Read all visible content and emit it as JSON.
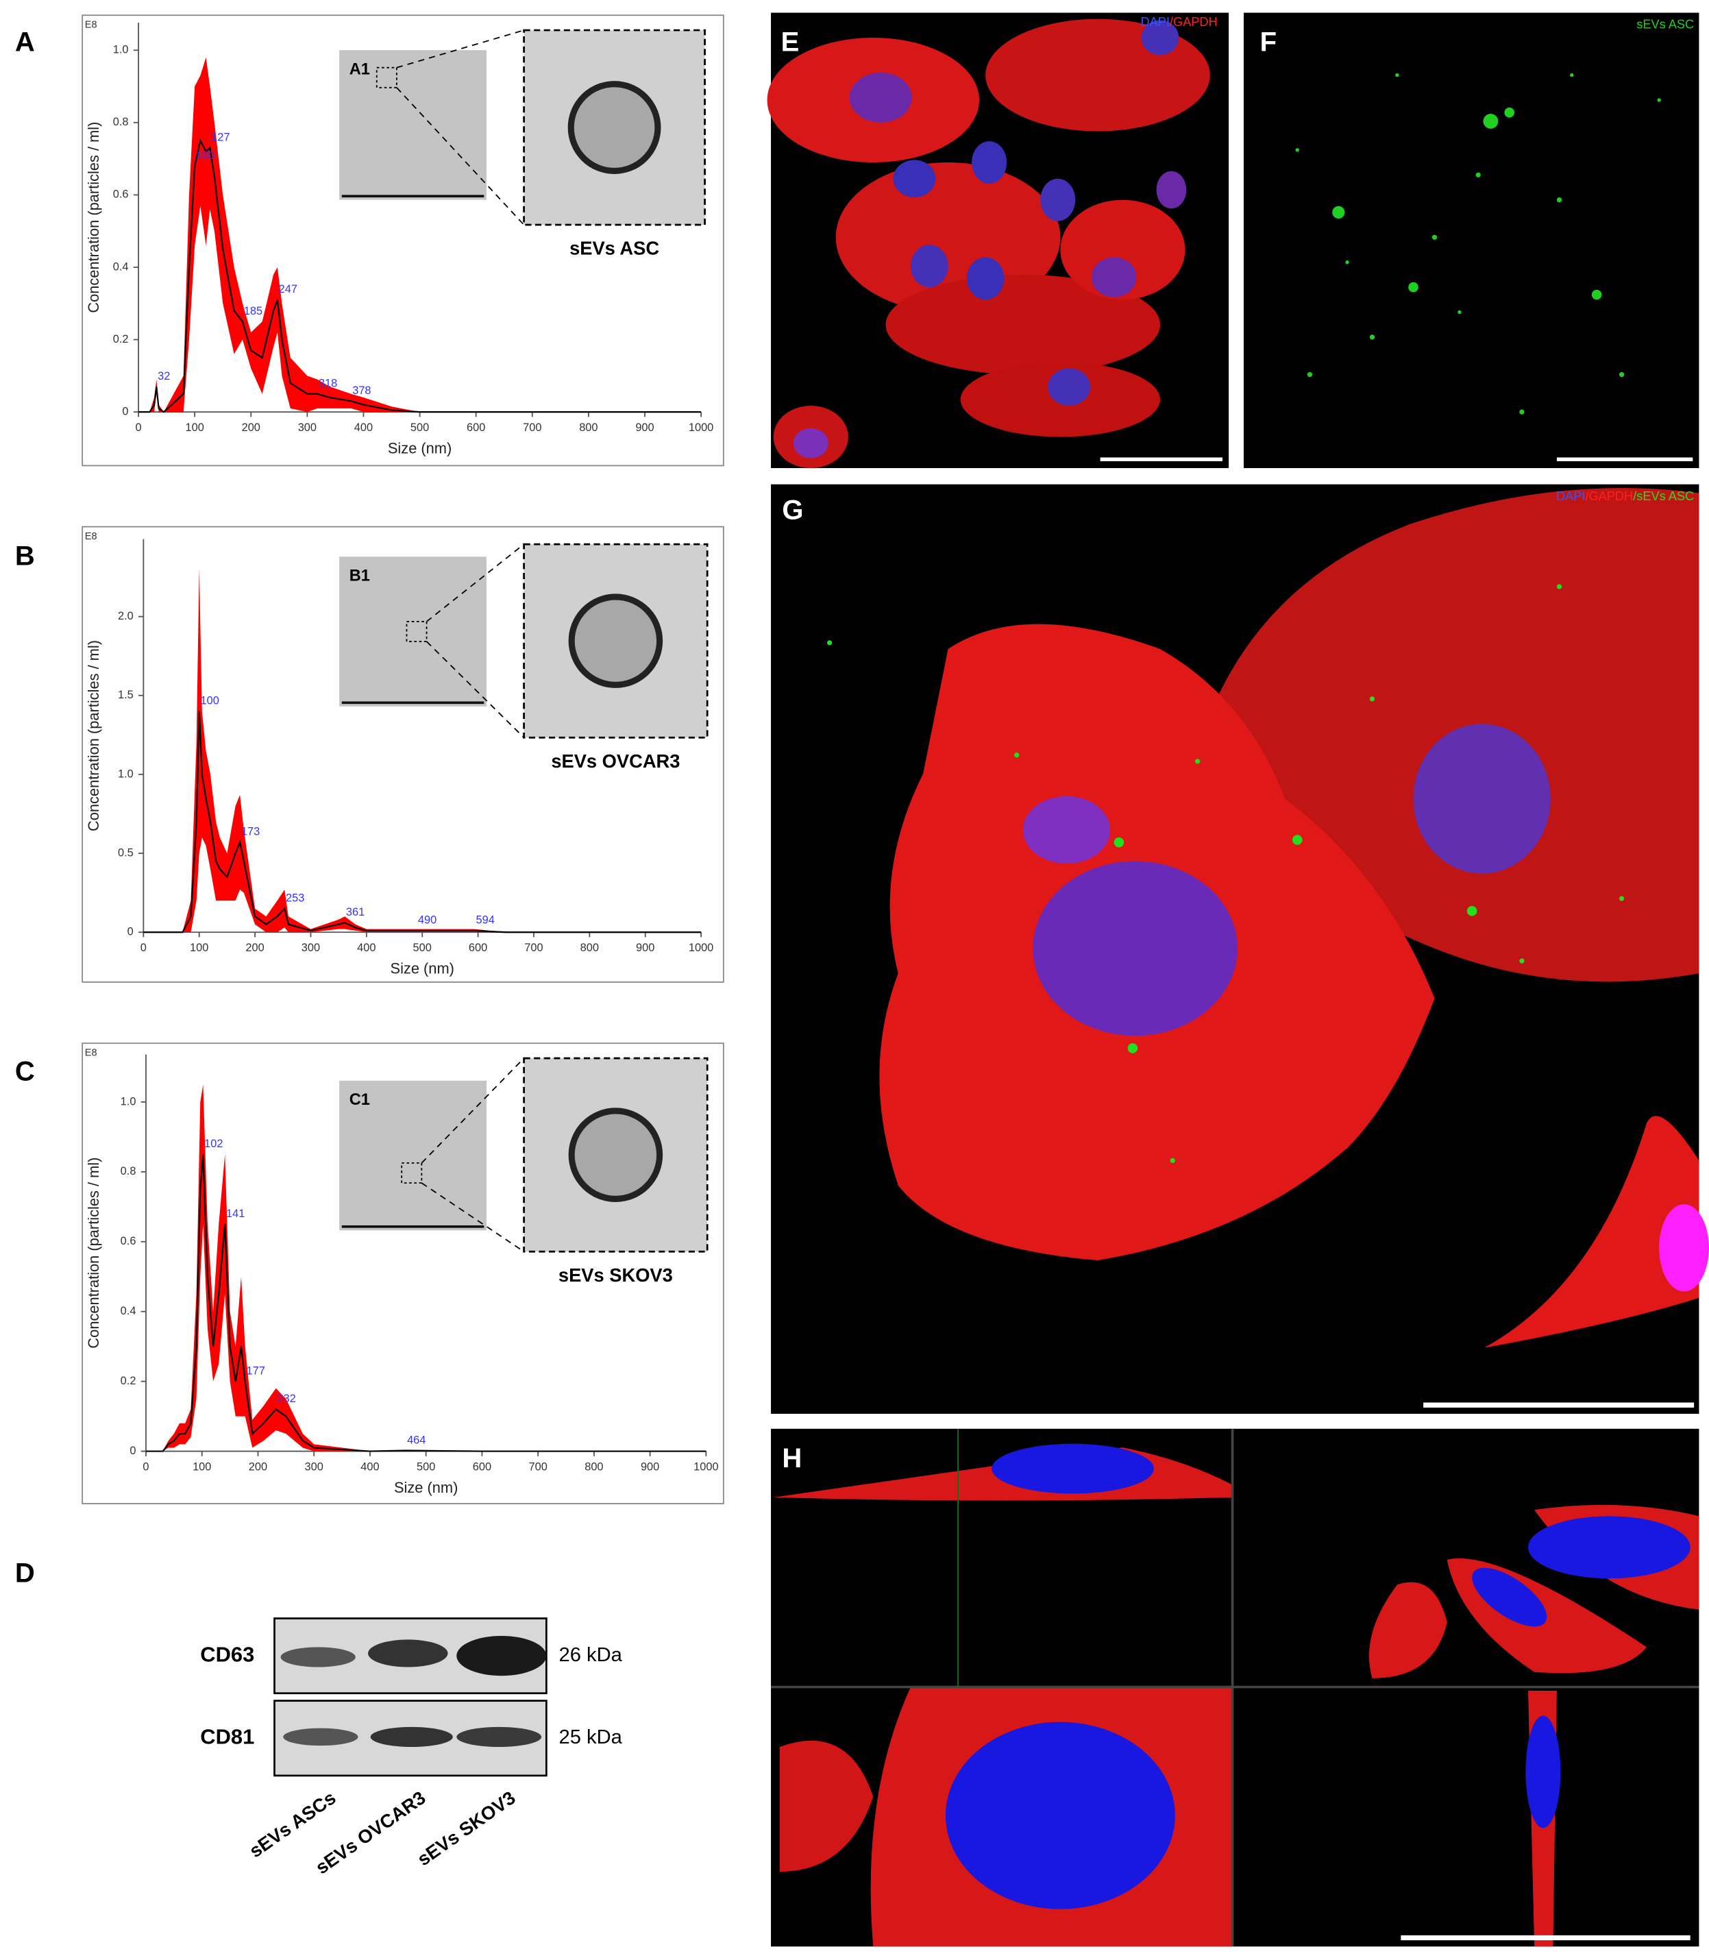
{
  "chart_data": [
    {
      "type": "line",
      "xlabel": "Size (nm)",
      "ylabel": "Concentration (particles / ml)",
      "y_multiplier": "E8",
      "xlim": [
        0,
        1000
      ],
      "xticks": [
        0,
        100,
        200,
        300,
        400,
        500,
        600,
        700,
        800,
        900,
        1000
      ],
      "ylim": [
        0,
        1.076
      ],
      "yticks": [
        0,
        0.2,
        0.4,
        0.6,
        0.8,
        {
          "value": 1,
          "label": "1.0"
        }
      ],
      "x": [
        0,
        20,
        28,
        32,
        36,
        45,
        80,
        90,
        100,
        110,
        120,
        127,
        135,
        150,
        170,
        185,
        200,
        220,
        240,
        247,
        255,
        270,
        300,
        318,
        340,
        378,
        400,
        450,
        500,
        1000
      ],
      "series": [
        {
          "color": "#000000",
          "error_color": "#ff0000",
          "values": [
            0,
            0,
            0.02,
            0.07,
            0.01,
            0,
            0.05,
            0.4,
            0.68,
            0.75,
            0.72,
            0.73,
            0.65,
            0.45,
            0.28,
            0.25,
            0.17,
            0.15,
            0.28,
            0.31,
            0.2,
            0.08,
            0.05,
            0.05,
            0.04,
            0.03,
            0.02,
            0.005,
            0,
            0
          ],
          "error": [
            0,
            0,
            0.02,
            0.02,
            0.01,
            0,
            0.05,
            0.2,
            0.22,
            0.18,
            0.26,
            0.17,
            0.15,
            0.15,
            0.12,
            0.05,
            0.05,
            0.1,
            0.1,
            0.09,
            0.1,
            0.07,
            0.05,
            0.04,
            0.03,
            0.02,
            0.02,
            0.01,
            0,
            0
          ]
        }
      ],
      "peak_labels": [
        32,
        100,
        127,
        185,
        247,
        318,
        378
      ],
      "inset": {
        "label": "A1",
        "caption": "sEVs ASC"
      }
    },
    {
      "type": "line",
      "xlabel": "Size (nm)",
      "ylabel": "Concentration (particles / ml)",
      "y_multiplier": "E8",
      "xlim": [
        0,
        1000
      ],
      "xticks": [
        0,
        100,
        200,
        300,
        400,
        500,
        600,
        700,
        800,
        900,
        1000
      ],
      "ylim": [
        0,
        2.49
      ],
      "yticks": [
        0,
        0.5,
        {
          "value": 1,
          "label": "1.0"
        },
        1.5,
        {
          "value": 2,
          "label": "2.0"
        }
      ],
      "x": [
        0,
        70,
        85,
        95,
        100,
        105,
        112,
        120,
        130,
        137,
        150,
        165,
        173,
        180,
        200,
        220,
        240,
        253,
        260,
        300,
        350,
        361,
        380,
        400,
        490,
        594,
        650,
        1000
      ],
      "series": [
        {
          "color": "#000000",
          "error_color": "#ff0000",
          "values": [
            0,
            0,
            0.1,
            0.7,
            1.4,
            1.0,
            0.85,
            0.7,
            0.45,
            0.4,
            0.35,
            0.5,
            0.57,
            0.45,
            0.1,
            0.05,
            0.1,
            0.15,
            0.05,
            0.01,
            0.05,
            0.06,
            0.03,
            0.01,
            0.01,
            0.01,
            0,
            0
          ],
          "error": [
            0,
            0,
            0.1,
            0.5,
            0.9,
            0.4,
            0.3,
            0.3,
            0.25,
            0.2,
            0.15,
            0.3,
            0.3,
            0.2,
            0.05,
            0.05,
            0.1,
            0.12,
            0.05,
            0.01,
            0.03,
            0.04,
            0.02,
            0.01,
            0.01,
            0.01,
            0,
            0
          ]
        }
      ],
      "peak_labels": [
        100,
        173,
        253,
        361,
        490,
        594
      ],
      "inset": {
        "label": "B1",
        "caption": "sEVs OVCAR3"
      }
    },
    {
      "type": "line",
      "xlabel": "Size (nm)",
      "ylabel": "Concentration (particles / ml)",
      "y_multiplier": "E8",
      "xlim": [
        0,
        1000
      ],
      "xticks": [
        0,
        100,
        200,
        300,
        400,
        500,
        600,
        700,
        800,
        900,
        1000
      ],
      "ylim": [
        0,
        1.136
      ],
      "yticks": [
        0,
        0.2,
        0.4,
        0.6,
        0.8,
        {
          "value": 1,
          "label": "1.0"
        }
      ],
      "x": [
        0,
        30,
        40,
        50,
        60,
        70,
        80,
        90,
        97,
        102,
        110,
        120,
        130,
        141,
        150,
        160,
        170,
        177,
        190,
        210,
        232,
        250,
        280,
        300,
        400,
        464,
        600,
        1000
      ],
      "series": [
        {
          "color": "#000000",
          "error_color": "#ff0000",
          "values": [
            0,
            0,
            0.02,
            0.03,
            0.05,
            0.05,
            0.08,
            0.3,
            0.75,
            0.85,
            0.5,
            0.3,
            0.45,
            0.65,
            0.3,
            0.2,
            0.3,
            0.2,
            0.05,
            0.08,
            0.12,
            0.1,
            0.03,
            0.01,
            0,
            0.002,
            0,
            0
          ],
          "error": [
            0,
            0,
            0.01,
            0.02,
            0.03,
            0.03,
            0.04,
            0.15,
            0.25,
            0.2,
            0.15,
            0.1,
            0.2,
            0.2,
            0.1,
            0.1,
            0.2,
            0.1,
            0.04,
            0.05,
            0.06,
            0.05,
            0.02,
            0.01,
            0,
            0.002,
            0,
            0
          ]
        }
      ],
      "peak_labels": [
        102,
        141,
        177,
        232,
        464
      ],
      "inset": {
        "label": "C1",
        "caption": "sEVs SKOV3"
      }
    }
  ],
  "panels": [
    "A",
    "B",
    "C",
    "D",
    "E",
    "F",
    "G",
    "H"
  ],
  "blot": {
    "rows": [
      {
        "name": "CD63",
        "size": "26 kDa"
      },
      {
        "name": "CD81",
        "size": "25 kDa"
      }
    ],
    "lanes": [
      "sEVs ASCs",
      "sEVs OVCAR3",
      "sEVs SKOV3"
    ]
  },
  "micrographs": {
    "E": [
      "DAPI",
      "/GAPDH"
    ],
    "F": [
      "sEVs ASC"
    ],
    "G": [
      "DAPI",
      "/GAPDH",
      "/sEVs ASC"
    ]
  }
}
